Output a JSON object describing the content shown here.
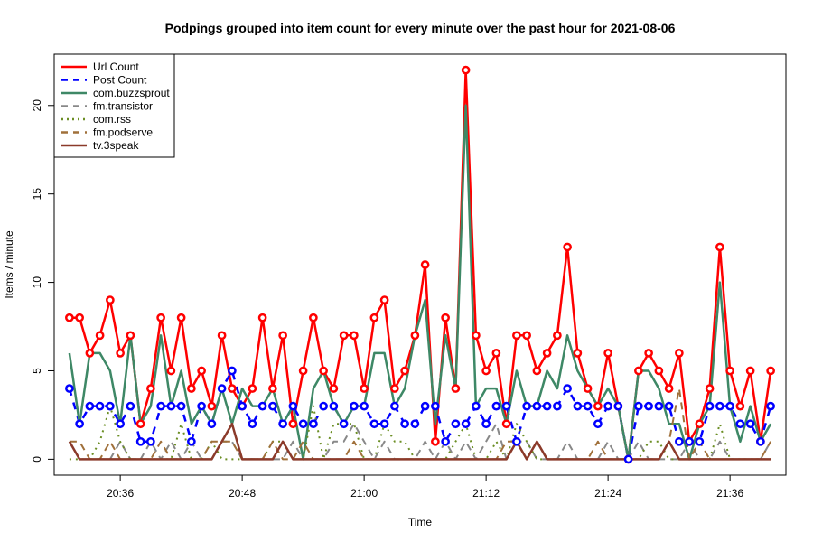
{
  "chart_data": {
    "type": "line",
    "title": "Podpings grouped into item count for every  minute  over the past hour for 2021-08-06",
    "xlabel": "Time",
    "ylabel": "Items /  minute",
    "x_start_label": "20:31",
    "x_step_minutes": 1,
    "xlim": [
      -1.5,
      70.5
    ],
    "ylim": [
      -0.9,
      22.9
    ],
    "x_ticks": [
      {
        "index": 5,
        "label": "20:36"
      },
      {
        "index": 17,
        "label": "20:48"
      },
      {
        "index": 29,
        "label": "21:00"
      },
      {
        "index": 41,
        "label": "21:12"
      },
      {
        "index": 53,
        "label": "21:24"
      },
      {
        "index": 65,
        "label": "21:36"
      }
    ],
    "y_ticks": [
      0,
      5,
      10,
      15,
      20
    ],
    "legend_position": "top-left",
    "series": [
      {
        "name": "Url Count",
        "color": "#ff0000",
        "dash": "solid",
        "width": 2.5,
        "markers": true,
        "values": [
          8,
          8,
          6,
          7,
          9,
          6,
          7,
          2,
          4,
          8,
          5,
          8,
          4,
          5,
          3,
          7,
          4,
          3,
          4,
          8,
          4,
          7,
          2,
          5,
          8,
          5,
          4,
          7,
          7,
          4,
          8,
          9,
          4,
          5,
          7,
          11,
          1,
          8,
          4,
          22,
          7,
          5,
          6,
          2,
          7,
          7,
          5,
          6,
          7,
          12,
          6,
          4,
          3,
          6,
          3,
          0,
          5,
          6,
          5,
          4,
          6,
          1,
          2,
          4,
          12,
          5,
          3,
          5,
          1,
          5
        ]
      },
      {
        "name": "Post Count",
        "color": "#0000ff",
        "dash": "8,8",
        "width": 2.5,
        "markers": true,
        "values": [
          4,
          2,
          3,
          3,
          3,
          2,
          3,
          1,
          1,
          3,
          3,
          3,
          1,
          3,
          2,
          4,
          5,
          3,
          2,
          3,
          3,
          2,
          3,
          2,
          2,
          3,
          3,
          2,
          3,
          3,
          2,
          2,
          3,
          2,
          2,
          3,
          3,
          1,
          2,
          2,
          3,
          2,
          3,
          3,
          1,
          3,
          3,
          3,
          3,
          4,
          3,
          3,
          2,
          3,
          3,
          0,
          3,
          3,
          3,
          3,
          1,
          1,
          1,
          3,
          3,
          3,
          2,
          2,
          1,
          3
        ]
      },
      {
        "name": "com.buzzsprout",
        "color": "#3e8866",
        "dash": "solid",
        "width": 2.5,
        "markers": false,
        "values": [
          6,
          2,
          6,
          6,
          5,
          2,
          7,
          2,
          3,
          7,
          3,
          5,
          2,
          3,
          2,
          4,
          2,
          4,
          3,
          3,
          4,
          2,
          3,
          0,
          4,
          5,
          3,
          2,
          3,
          3,
          6,
          6,
          3,
          4,
          7,
          9,
          2,
          7,
          4,
          20,
          3,
          4,
          4,
          2,
          5,
          3,
          3,
          5,
          4,
          7,
          5,
          4,
          3,
          4,
          3,
          0,
          5,
          5,
          4,
          2,
          2,
          0,
          2,
          3,
          10,
          3,
          1,
          3,
          1,
          2
        ]
      },
      {
        "name": "fm.transistor",
        "color": "#888888",
        "dash": "8,6",
        "width": 2,
        "markers": false,
        "values": [
          1,
          0,
          0,
          0,
          0,
          1,
          0,
          0,
          1,
          0,
          1,
          0,
          1,
          0,
          0,
          1,
          1,
          0,
          0,
          0,
          0,
          0,
          1,
          0,
          0,
          0,
          1,
          1,
          2,
          1,
          0,
          1,
          0,
          0,
          0,
          1,
          0,
          1,
          0,
          1,
          0,
          1,
          2,
          0,
          1,
          1,
          0,
          0,
          0,
          1,
          0,
          0,
          0,
          1,
          0,
          0,
          1,
          0,
          0,
          0,
          0,
          1,
          0,
          0,
          1,
          0,
          0,
          0,
          0,
          1
        ]
      },
      {
        "name": "com.rss",
        "color": "#6b8e23",
        "dash": "2,5",
        "width": 2,
        "markers": false,
        "values": [
          0,
          0,
          0,
          1,
          3,
          1,
          0,
          0,
          0,
          0,
          0,
          2,
          0,
          0,
          1,
          0,
          0,
          0,
          0,
          0,
          1,
          1,
          0,
          0,
          3,
          0,
          2,
          2,
          2,
          0,
          0,
          2,
          1,
          1,
          0,
          0,
          0,
          0,
          1,
          2,
          0,
          0,
          1,
          0,
          2,
          1,
          0,
          0,
          0,
          0,
          0,
          0,
          0,
          0,
          0,
          0,
          0,
          1,
          1,
          0,
          0,
          0,
          0,
          0,
          2,
          0,
          0,
          0,
          0,
          0
        ]
      },
      {
        "name": "fm.podserve",
        "color": "#a0703a",
        "dash": "8,6",
        "width": 2,
        "markers": false,
        "values": [
          1,
          1,
          0,
          0,
          1,
          0,
          0,
          0,
          0,
          1,
          0,
          0,
          0,
          0,
          1,
          1,
          1,
          0,
          0,
          0,
          1,
          0,
          0,
          1,
          0,
          0,
          0,
          0,
          1,
          0,
          0,
          0,
          0,
          0,
          0,
          0,
          0,
          0,
          0,
          0,
          0,
          0,
          0,
          1,
          1,
          0,
          1,
          0,
          0,
          0,
          0,
          0,
          1,
          0,
          0,
          0,
          0,
          0,
          0,
          1,
          4,
          0,
          1,
          0,
          0,
          0,
          0,
          0,
          0,
          1
        ]
      },
      {
        "name": "tv.3speak",
        "color": "#8b3a2a",
        "dash": "solid",
        "width": 2.5,
        "markers": false,
        "values": [
          1,
          0,
          0,
          0,
          0,
          0,
          0,
          0,
          0,
          0,
          0,
          0,
          0,
          0,
          0,
          1,
          2,
          0,
          0,
          0,
          0,
          1,
          0,
          0,
          0,
          0,
          0,
          0,
          0,
          0,
          0,
          0,
          0,
          0,
          0,
          0,
          0,
          0,
          0,
          0,
          0,
          0,
          0,
          0,
          1,
          0,
          1,
          0,
          0,
          0,
          0,
          0,
          0,
          0,
          0,
          0,
          0,
          0,
          0,
          1,
          0,
          0,
          0,
          0,
          0,
          0,
          0,
          0,
          0,
          0
        ]
      }
    ]
  }
}
